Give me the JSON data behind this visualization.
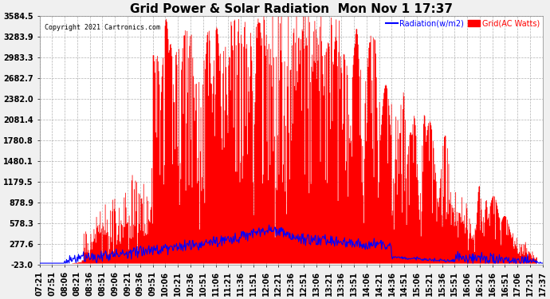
{
  "title": "Grid Power & Solar Radiation  Mon Nov 1 17:37",
  "copyright": "Copyright 2021 Cartronics.com",
  "legend_radiation": "Radiation(w/m2)",
  "legend_grid": "Grid(AC Watts)",
  "yticks": [
    3584.5,
    3283.9,
    2983.3,
    2682.7,
    2382.0,
    2081.4,
    1780.8,
    1480.1,
    1179.5,
    878.9,
    578.3,
    277.6,
    -23.0
  ],
  "ymin": -23.0,
  "ymax": 3584.5,
  "grid_color": "#aaaaaa",
  "bg_color": "#f0f0f0",
  "plot_bg": "#ffffff",
  "red_color": "#ff0000",
  "blue_color": "#0000ff",
  "title_fontsize": 11,
  "tick_fontsize": 7,
  "x_tick_labels": [
    "07:21",
    "07:51",
    "08:06",
    "08:21",
    "08:36",
    "08:51",
    "09:06",
    "09:21",
    "09:36",
    "09:51",
    "10:06",
    "10:21",
    "10:36",
    "10:51",
    "11:06",
    "11:21",
    "11:36",
    "11:51",
    "12:06",
    "12:21",
    "12:36",
    "12:51",
    "13:06",
    "13:21",
    "13:36",
    "13:51",
    "14:06",
    "14:21",
    "14:36",
    "14:51",
    "15:06",
    "15:21",
    "15:36",
    "15:51",
    "16:06",
    "16:21",
    "16:36",
    "16:51",
    "17:06",
    "17:21",
    "17:37"
  ],
  "n_ticks": 41
}
